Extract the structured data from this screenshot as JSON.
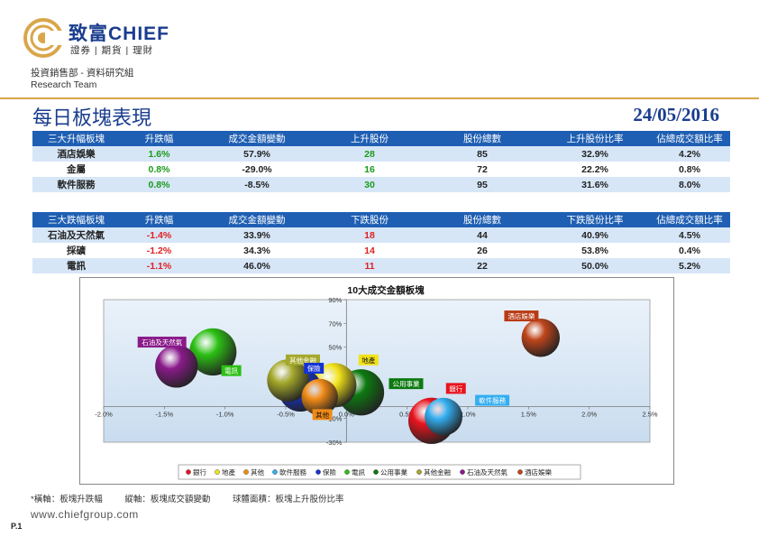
{
  "header": {
    "brand_cn": "致富",
    "brand_en": "CHIEF",
    "tagline": "證券 | 期貨 | 理財",
    "dept_cn": "投資銷售部 - 資料研究組",
    "dept_en": "Research Team",
    "title": "每日板塊表現",
    "date": "24/05/2016"
  },
  "colors": {
    "brand": "#1a3d8f",
    "header_bg": "#1f5fb3",
    "row_alt": "#d6e6f7",
    "gain": "#1a9b1a",
    "loss": "#e02020",
    "rule": "#d9a64a"
  },
  "top_gainers": {
    "columns": [
      "三大升幅板塊",
      "升跌幅",
      "成交金額變動",
      "上升股份",
      "股份總數",
      "上升股份比率",
      "佔總成交額比率"
    ],
    "rows": [
      [
        "酒店娛樂",
        "1.6%",
        "57.9%",
        "28",
        "85",
        "32.9%",
        "4.2%"
      ],
      [
        "金屬",
        "0.8%",
        "-29.0%",
        "16",
        "72",
        "22.2%",
        "0.8%"
      ],
      [
        "軟件服務",
        "0.8%",
        "-8.5%",
        "30",
        "95",
        "31.6%",
        "8.0%"
      ]
    ]
  },
  "top_losers": {
    "columns": [
      "三大跌幅板塊",
      "升跌幅",
      "成交金額變動",
      "下跌股份",
      "股份總數",
      "下跌股份比率",
      "佔總成交額比率"
    ],
    "rows": [
      [
        "石油及天然氣",
        "-1.4%",
        "33.9%",
        "18",
        "44",
        "40.9%",
        "4.5%"
      ],
      [
        "採礦",
        "-1.2%",
        "34.3%",
        "14",
        "26",
        "53.8%",
        "0.4%"
      ],
      [
        "電訊",
        "-1.1%",
        "46.0%",
        "11",
        "22",
        "50.0%",
        "5.2%"
      ]
    ]
  },
  "chart_data": {
    "type": "bubble",
    "title": "10大成交金額板塊",
    "x_ticks": [
      "-2.0%",
      "-1.5%",
      "-1.0%",
      "-0.5%",
      "0.0%",
      "0.5%",
      "1.0%",
      "1.5%",
      "2.0%",
      "2.5%"
    ],
    "y_ticks": [
      "90%",
      "70%",
      "50%",
      "30%",
      "10%",
      "-10%",
      "-30%"
    ],
    "xlim": [
      -2.0,
      2.5
    ],
    "ylim": [
      -30,
      90
    ],
    "series": [
      {
        "name": "銀行",
        "x": 0.7,
        "y": -12,
        "size": 48,
        "color": "#e8141e"
      },
      {
        "name": "地產",
        "x": -0.1,
        "y": 18,
        "size": 44,
        "color": "#f2e21a"
      },
      {
        "name": "其他",
        "x": -0.22,
        "y": 8,
        "size": 30,
        "color": "#f08a16"
      },
      {
        "name": "軟件服務",
        "x": 0.8,
        "y": -8.5,
        "size": 32,
        "color": "#33aef0"
      },
      {
        "name": "保險",
        "x": -0.38,
        "y": 14,
        "size": 42,
        "color": "#1432d6"
      },
      {
        "name": "電訊",
        "x": -1.1,
        "y": 46,
        "size": 50,
        "color": "#2cc014"
      },
      {
        "name": "公用事業",
        "x": 0.12,
        "y": 12,
        "size": 48,
        "color": "#0d7a10"
      },
      {
        "name": "其他金融",
        "x": -0.48,
        "y": 22,
        "size": 40,
        "color": "#a4a82a"
      },
      {
        "name": "石油及天然氣",
        "x": -1.4,
        "y": 33.9,
        "size": 40.9,
        "color": "#8a1a8a"
      },
      {
        "name": "酒店娛樂",
        "x": 1.6,
        "y": 57.9,
        "size": 32.9,
        "color": "#c0451a"
      }
    ],
    "labels": [
      {
        "name": "酒店娛樂",
        "x": 1.3,
        "y": 74,
        "color": "#b83a14"
      },
      {
        "name": "石油及天然氣",
        "x": -1.72,
        "y": 52,
        "color": "#8a1a8a"
      },
      {
        "name": "電訊",
        "x": -1.03,
        "y": 28,
        "color": "#2cc014"
      },
      {
        "name": "其他金融",
        "x": -0.5,
        "y": 37,
        "color": "#a4a82a"
      },
      {
        "name": "保險",
        "x": -0.35,
        "y": 30,
        "color": "#1432d6"
      },
      {
        "name": "地產",
        "x": 0.1,
        "y": 37,
        "color": "#f2e21a"
      },
      {
        "name": "公用事業",
        "x": 0.35,
        "y": 17,
        "color": "#0d7a10"
      },
      {
        "name": "銀行",
        "x": 0.82,
        "y": 13,
        "color": "#e8141e"
      },
      {
        "name": "軟件服務",
        "x": 1.06,
        "y": 3,
        "color": "#33aef0"
      },
      {
        "name": "其他",
        "x": -0.28,
        "y": -9,
        "color": "#f08a16"
      }
    ],
    "legend": [
      "銀行",
      "地產",
      "其他",
      "軟件服務",
      "保險",
      "電訊",
      "公用事業",
      "其他金融",
      "石油及天然氣",
      "酒店娛樂"
    ]
  },
  "footnote": {
    "xaxis": "*橫軸：板塊升跌幅",
    "yaxis": "縱軸：板塊成交額變動",
    "area": "球體面積：板塊上升股份比率"
  },
  "url": "www.chiefgroup.com",
  "page": "P.1"
}
